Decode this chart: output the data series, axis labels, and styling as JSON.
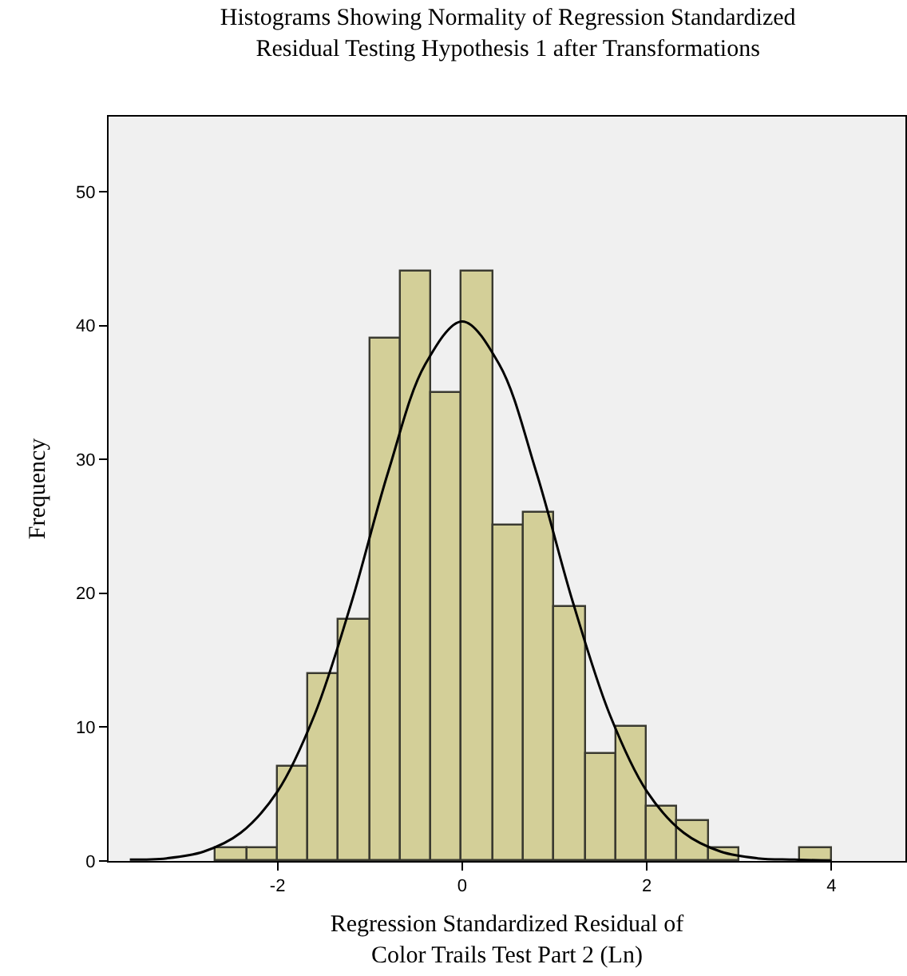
{
  "chart_data": {
    "type": "histogram",
    "title": "Histograms Showing Normality of Regression Standardized\nResidual Testing Hypothesis 1 after Transformations",
    "xlabel": "Regression Standardized Residual of\nColor Trails Test Part 2 (Ln)",
    "ylabel": "Frequency",
    "bins": [
      -2.667,
      -2.333,
      -2,
      -1.667,
      -1.333,
      -1,
      -0.667,
      -0.333,
      0,
      0.333,
      0.667,
      1,
      1.333,
      1.667,
      2,
      2.333,
      2.667,
      3,
      3.333,
      3.667,
      4
    ],
    "values": [
      1,
      1,
      7,
      14,
      18,
      39,
      44,
      35,
      44,
      25,
      26,
      19,
      8,
      10,
      4,
      3,
      1,
      0,
      0,
      1
    ],
    "color": "#d3cf98",
    "series": [
      {
        "type": "line",
        "color": "#000000",
        "x": [
          -3.6,
          -3.2,
          -2.8,
          -2.4,
          -2.0,
          -1.6,
          -1.2,
          -0.8,
          -0.4,
          0,
          0.4,
          0.8,
          1.2,
          1.6,
          2.0,
          2.4,
          2.8,
          3.2,
          3.6,
          4.0
        ],
        "values": [
          0.1,
          0.2,
          0.7,
          2.1,
          5.2,
          10.9,
          19.3,
          29.1,
          37.1,
          40.3,
          37.1,
          29.1,
          19.3,
          10.9,
          5.2,
          2.1,
          0.7,
          0.2,
          0.1,
          0
        ]
      }
    ],
    "xlim": [
      -3.83,
      4.8
    ],
    "ylim": [
      0,
      55.6
    ],
    "xticks": [
      -2,
      0,
      2,
      4
    ],
    "yticks": [
      0,
      10,
      20,
      30,
      40,
      50
    ],
    "grid": false
  }
}
